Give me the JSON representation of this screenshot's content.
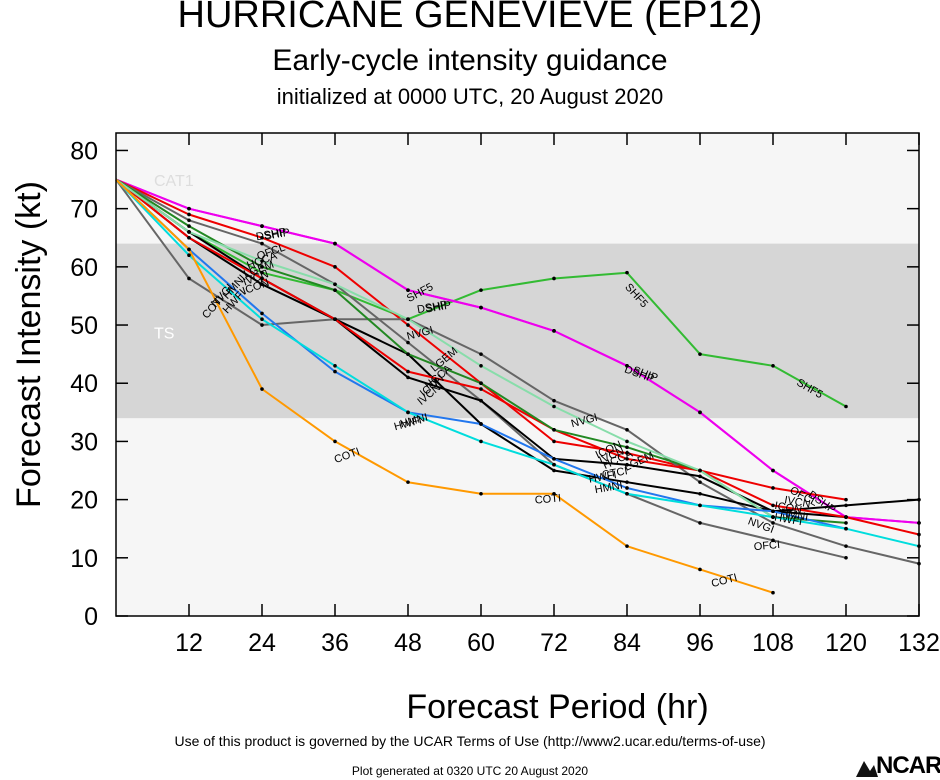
{
  "titles": {
    "main": "HURRICANE GENEVIEVE (EP12)",
    "sub": "Early-cycle intensity guidance",
    "init": "initialized at 0000 UTC, 20 August 2020"
  },
  "footer": {
    "terms": "Use of this product is governed by the UCAR Terms of Use (http://www2.ucar.edu/terms-of-use)",
    "generated": "Plot generated at 0320 UTC   20 August 2020",
    "logo": "NCAR"
  },
  "chart_data": {
    "type": "line",
    "xlabel": "Forecast Period (hr)",
    "ylabel": "Forecast Intensity (kt)",
    "xlim": [
      0,
      132
    ],
    "ylim": [
      0,
      83
    ],
    "xticks": [
      12,
      24,
      36,
      48,
      60,
      72,
      84,
      96,
      108,
      120,
      132
    ],
    "yticks": [
      0,
      10,
      20,
      30,
      40,
      50,
      60,
      70,
      80
    ],
    "bands": [
      {
        "label": "TS",
        "ymin": 34,
        "ymax": 64,
        "color": "#d6d6d6"
      },
      {
        "label": "CAT1",
        "ymin": 64,
        "ymax": 83,
        "color": "#f6f6f6"
      }
    ],
    "series": [
      {
        "name": "SHF5",
        "color": "#33bb33",
        "x": [
          0,
          12,
          24,
          36,
          48,
          60,
          72,
          84,
          96,
          108,
          120
        ],
        "y": [
          75,
          66,
          59,
          56,
          51,
          56,
          58,
          59,
          45,
          43,
          36
        ]
      },
      {
        "name": "DSHP",
        "color": "#ee00ee",
        "x": [
          0,
          12,
          24,
          36,
          48,
          60,
          72,
          84,
          96,
          108,
          120,
          132
        ],
        "y": [
          75,
          70,
          67,
          64,
          56,
          53,
          49,
          43,
          35,
          25,
          17,
          16
        ]
      },
      {
        "name": "SHIP",
        "color": "#ee00ee",
        "x": [
          0,
          12,
          24,
          36,
          48,
          60,
          72,
          84,
          96,
          108,
          120,
          132
        ],
        "y": [
          75,
          70,
          67,
          64,
          56,
          53,
          49,
          43,
          35,
          25,
          17,
          16
        ]
      },
      {
        "name": "OFCL",
        "color": "#ee0000",
        "x": [
          0,
          12,
          24,
          36,
          48,
          60,
          72,
          84,
          96,
          108,
          120
        ],
        "y": [
          75,
          69,
          65,
          60,
          50,
          40,
          30,
          28,
          25,
          22,
          20
        ]
      },
      {
        "name": "OFCI",
        "color": "#666666",
        "x": [
          0,
          12,
          24,
          36,
          48,
          60,
          72,
          84,
          96,
          108,
          120
        ],
        "y": [
          75,
          68,
          64,
          57,
          47,
          37,
          26,
          21,
          16,
          13,
          10
        ]
      },
      {
        "name": "NVGI",
        "color": "#666666",
        "x": [
          0,
          12,
          24,
          36,
          48,
          60,
          72,
          84,
          96,
          108,
          120,
          132
        ],
        "y": [
          75,
          58,
          50,
          51,
          51,
          45,
          37,
          32,
          23,
          16,
          12,
          9
        ]
      },
      {
        "name": "CTCI",
        "color": "#000000",
        "x": [
          0,
          12,
          24,
          36,
          48,
          60,
          72,
          84,
          96,
          108,
          120,
          132
        ],
        "y": [
          75,
          66,
          58,
          51,
          45,
          33,
          25,
          23,
          21,
          18,
          19,
          20
        ]
      },
      {
        "name": "IVCN",
        "color": "#000000",
        "x": [
          0,
          12,
          24,
          36,
          48,
          60,
          72,
          84,
          96,
          108,
          120
        ],
        "y": [
          75,
          65,
          57,
          51,
          41,
          37,
          27,
          26,
          24,
          18,
          17
        ]
      },
      {
        "name": "ICON",
        "color": "#ee0000",
        "x": [
          0,
          12,
          24,
          36,
          48,
          60,
          72,
          84,
          96,
          108,
          120,
          132
        ],
        "y": [
          75,
          65,
          58,
          51,
          42,
          39,
          32,
          27,
          25,
          19,
          17,
          14
        ]
      },
      {
        "name": "HCCA",
        "color": "#228822",
        "x": [
          0,
          12,
          24,
          36,
          48,
          60,
          72,
          84,
          96,
          108,
          120
        ],
        "y": [
          75,
          67,
          60,
          56,
          45,
          40,
          32,
          29,
          25,
          17,
          16
        ]
      },
      {
        "name": "LGEM",
        "color": "#88ddaa",
        "x": [
          0,
          12,
          24,
          36,
          48,
          60,
          72,
          84,
          96,
          108
        ],
        "y": [
          75,
          66,
          61,
          57,
          51,
          43,
          36,
          30,
          25,
          17
        ]
      },
      {
        "name": "HWFI",
        "color": "#2277ee",
        "x": [
          0,
          12,
          24,
          36,
          48,
          60,
          72,
          84,
          96,
          108,
          120
        ],
        "y": [
          75,
          63,
          52,
          42,
          35,
          33,
          27,
          22,
          19,
          18,
          15
        ]
      },
      {
        "name": "HMNI",
        "color": "#00dddd",
        "x": [
          0,
          12,
          24,
          36,
          48,
          60,
          72,
          84,
          96,
          108,
          120,
          132
        ],
        "y": [
          75,
          62,
          51,
          43,
          35,
          30,
          26,
          21,
          19,
          17,
          15,
          12
        ]
      },
      {
        "name": "COTI",
        "color": "#ff9900",
        "x": [
          0,
          12,
          24,
          36,
          48,
          60,
          72,
          84,
          96,
          108
        ],
        "y": [
          75,
          63,
          39,
          30,
          23,
          21,
          21,
          12,
          8,
          4
        ]
      }
    ],
    "labels": [
      {
        "text": "SHF5",
        "x": 50,
        "y": 55.5,
        "angle": -28
      },
      {
        "text": "SHF5",
        "x": 85.5,
        "y": 55,
        "angle": 48
      },
      {
        "text": "SHF5",
        "x": 114,
        "y": 39,
        "angle": 30
      },
      {
        "text": "DSHP",
        "x": 25.5,
        "y": 65.5,
        "angle": -10
      },
      {
        "text": "SHIP",
        "x": 26.5,
        "y": 65.5,
        "angle": -10
      },
      {
        "text": "DSHP",
        "x": 52,
        "y": 53,
        "angle": -10
      },
      {
        "text": "SHIP",
        "x": 53,
        "y": 53,
        "angle": -10
      },
      {
        "text": "DSHP",
        "x": 86,
        "y": 41.5,
        "angle": 20
      },
      {
        "text": "SHIP",
        "x": 87,
        "y": 41.5,
        "angle": 20
      },
      {
        "text": "DSHP",
        "x": 116,
        "y": 19.5,
        "angle": 35
      },
      {
        "text": "OFCL",
        "x": 25.5,
        "y": 62.5,
        "angle": -20
      },
      {
        "text": "OFCL",
        "x": 113,
        "y": 20.5,
        "angle": 28
      },
      {
        "text": "OFCI",
        "x": 107,
        "y": 12,
        "angle": -5
      },
      {
        "text": "HCCA",
        "x": 24,
        "y": 61,
        "angle": -20
      },
      {
        "text": "LGEM",
        "x": 23.5,
        "y": 59.5,
        "angle": -20
      },
      {
        "text": "IVCN",
        "x": 23,
        "y": 58,
        "angle": -20
      },
      {
        "text": "ICON",
        "x": 23,
        "y": 56.5,
        "angle": -20
      },
      {
        "text": "HWFI",
        "x": 19.5,
        "y": 54,
        "angle": -48
      },
      {
        "text": "HMNI",
        "x": 19.5,
        "y": 56.5,
        "angle": -48
      },
      {
        "text": "NVGI",
        "x": 17.5,
        "y": 55,
        "angle": -48
      },
      {
        "text": "COTI",
        "x": 16,
        "y": 53,
        "angle": -48
      },
      {
        "text": "NVGI",
        "x": 50,
        "y": 48.5,
        "angle": -15
      },
      {
        "text": "LGEM",
        "x": 54,
        "y": 44,
        "angle": -40
      },
      {
        "text": "HCCA",
        "x": 53,
        "y": 41,
        "angle": -40
      },
      {
        "text": "ICON",
        "x": 52,
        "y": 39.5,
        "angle": -40
      },
      {
        "text": "IVCN",
        "x": 51.5,
        "y": 38,
        "angle": -40
      },
      {
        "text": "HWFI",
        "x": 48,
        "y": 33,
        "angle": -15
      },
      {
        "text": "HMNI",
        "x": 49,
        "y": 33.5,
        "angle": -15
      },
      {
        "text": "COTI",
        "x": 38,
        "y": 27.5,
        "angle": -20
      },
      {
        "text": "COTI",
        "x": 71,
        "y": 20,
        "angle": -5
      },
      {
        "text": "COTI",
        "x": 100,
        "y": 6,
        "angle": -15
      },
      {
        "text": "NVGI",
        "x": 77,
        "y": 33.5,
        "angle": -15
      },
      {
        "text": "ICON",
        "x": 81,
        "y": 28.5,
        "angle": -25
      },
      {
        "text": "IVCN",
        "x": 81.5,
        "y": 27.5,
        "angle": -25
      },
      {
        "text": "HCCA",
        "x": 82.5,
        "y": 26.8,
        "angle": -25
      },
      {
        "text": "LGEM",
        "x": 86,
        "y": 26.5,
        "angle": -25
      },
      {
        "text": "HWFI",
        "x": 80,
        "y": 23.8,
        "angle": -10
      },
      {
        "text": "HMNI",
        "x": 81,
        "y": 22,
        "angle": -10
      },
      {
        "text": "CTCI",
        "x": 82,
        "y": 24.5,
        "angle": -10
      },
      {
        "text": "HWFI",
        "x": 110.5,
        "y": 16.5,
        "angle": 10
      },
      {
        "text": "HMNI",
        "x": 111.5,
        "y": 17.3,
        "angle": 10
      },
      {
        "text": "ICON",
        "x": 110.5,
        "y": 18.5,
        "angle": 10
      },
      {
        "text": "IVCN",
        "x": 112,
        "y": 19.5,
        "angle": 10
      },
      {
        "text": "NVGI",
        "x": 106,
        "y": 15.5,
        "angle": 20
      }
    ]
  }
}
